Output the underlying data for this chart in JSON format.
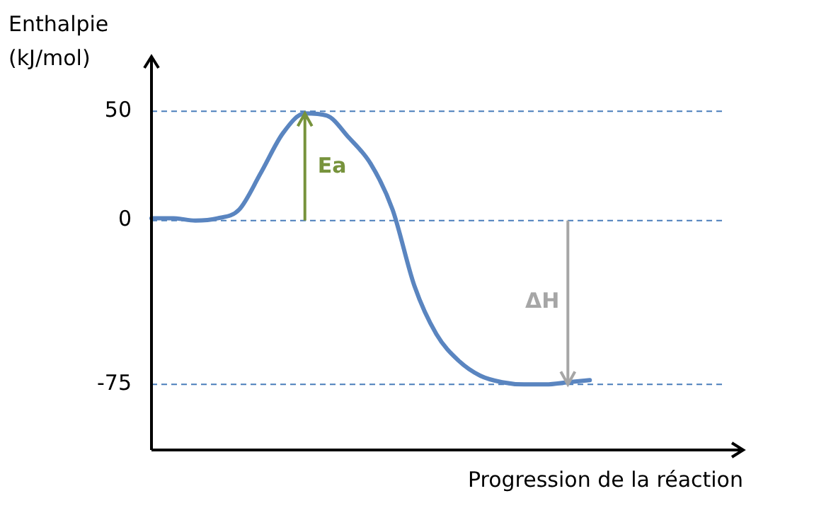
{
  "chart_data": {
    "type": "line",
    "ylabel": "Enthalpie (kJ/mol)",
    "xlabel": "Progression de la réaction",
    "categories": [
      null,
      null,
      null,
      null,
      null,
      null,
      null,
      null,
      null,
      null,
      null,
      null,
      null,
      null,
      null,
      null,
      null,
      null,
      null,
      null,
      null,
      null,
      null,
      null,
      null,
      null,
      null,
      null
    ],
    "series": [
      {
        "color": "#5a85c0",
        "values": [
          1,
          1,
          0,
          1,
          5,
          22,
          40,
          49,
          48,
          38,
          26,
          5,
          -30,
          -52,
          -64,
          -71,
          -74,
          -75,
          -75,
          -74,
          -73,
          null,
          null,
          null,
          null,
          null,
          null,
          null
        ]
      }
    ],
    "ylim": [
      -105,
      75
    ],
    "yticks": [
      50,
      0,
      -75
    ],
    "ref_lines": [
      {
        "axis": "y",
        "value": 50,
        "color": "#4a7ebb",
        "line_style": "dashed"
      },
      {
        "axis": "y",
        "value": 0,
        "color": "#4a7ebb",
        "line_style": "dashed"
      },
      {
        "axis": "y",
        "value": -75,
        "color": "#4a7ebb",
        "line_style": "dashed"
      }
    ],
    "annotations": [
      "Ea",
      "ΔH"
    ],
    "tick_labels": "y",
    "grid": false,
    "legend": false,
    "marker": "none",
    "line_style": "solid"
  }
}
